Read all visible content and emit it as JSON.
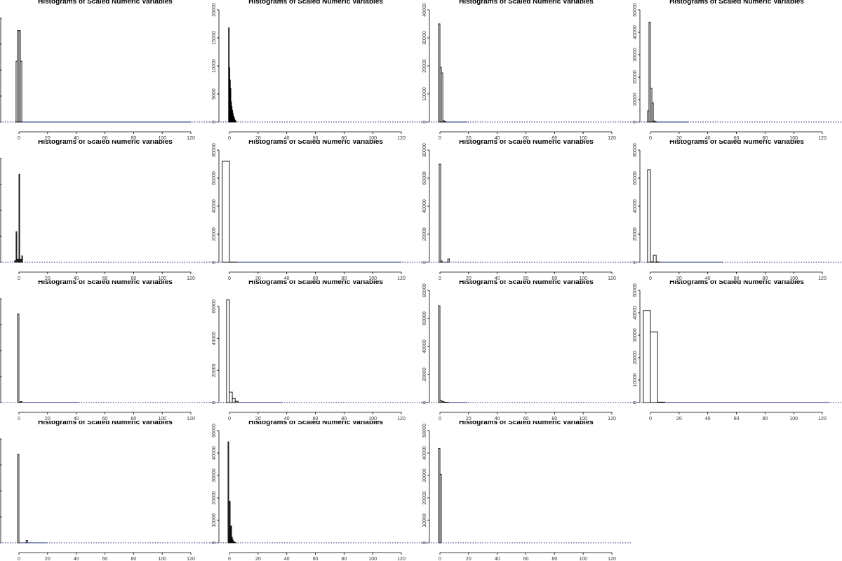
{
  "chart_data": [
    {
      "type": "bar",
      "title": "Histograms of Scaled Numeric Variables",
      "xlim": [
        -5,
        120
      ],
      "ylim": [
        0,
        70000
      ],
      "xticks": [
        "0",
        "20",
        "40",
        "60",
        "80",
        "100",
        "120"
      ],
      "yticks": [],
      "bins": [
        {
          "x0": -2,
          "x1": -1,
          "count": 38000
        },
        {
          "x0": -1,
          "x1": 0,
          "count": 57000
        },
        {
          "x0": 0,
          "x1": 1,
          "count": 57000
        },
        {
          "x0": 1,
          "x1": 2,
          "count": 38000
        }
      ],
      "baseline_end": 120
    },
    {
      "type": "bar",
      "title": "Histograms of Scaled Numeric Variables",
      "xlim": [
        -5,
        120
      ],
      "ylim": [
        0,
        20000
      ],
      "xticks": [
        "0",
        "20",
        "40",
        "60",
        "80",
        "100",
        "120"
      ],
      "yticks": [
        "0",
        "5000",
        "10000",
        "15000",
        "20000"
      ],
      "bins": [
        {
          "x0": -0.6,
          "x1": -0.2,
          "count": 16800
        },
        {
          "x0": -0.2,
          "x1": 0.2,
          "count": 9700
        },
        {
          "x0": 0.2,
          "x1": 0.6,
          "count": 7500
        },
        {
          "x0": 0.6,
          "x1": 1.0,
          "count": 6000
        },
        {
          "x0": 1.0,
          "x1": 1.4,
          "count": 3600
        },
        {
          "x0": 1.4,
          "x1": 1.8,
          "count": 2800
        },
        {
          "x0": 1.8,
          "x1": 2.2,
          "count": 2100
        },
        {
          "x0": 2.2,
          "x1": 2.6,
          "count": 1600
        },
        {
          "x0": 2.6,
          "x1": 3.0,
          "count": 1100
        },
        {
          "x0": 3.0,
          "x1": 3.4,
          "count": 800
        },
        {
          "x0": 3.4,
          "x1": 3.8,
          "count": 500
        },
        {
          "x0": 3.8,
          "x1": 4.2,
          "count": 300
        },
        {
          "x0": 4.2,
          "x1": 4.6,
          "count": 150
        }
      ],
      "baseline_end": 5
    },
    {
      "type": "bar",
      "title": "Histograms of Scaled Numeric Variables",
      "xlim": [
        -5,
        120
      ],
      "ylim": [
        0,
        40000
      ],
      "xticks": [
        "0",
        "20",
        "40",
        "60",
        "80",
        "100",
        "120"
      ],
      "yticks": [
        "0",
        "10000",
        "20000",
        "30000",
        "40000"
      ],
      "bins": [
        {
          "x0": -1,
          "x1": 0,
          "count": 35000
        },
        {
          "x0": 0,
          "x1": 1,
          "count": 19500
        },
        {
          "x0": 1,
          "x1": 2,
          "count": 17500
        },
        {
          "x0": 2,
          "x1": 3,
          "count": 500
        },
        {
          "x0": 3,
          "x1": 4,
          "count": 150
        }
      ],
      "baseline_end": 19
    },
    {
      "type": "bar",
      "title": "Histograms of Scaled Numeric Variables",
      "xlim": [
        -5,
        120
      ],
      "ylim": [
        0,
        50000
      ],
      "xticks": [
        "0",
        "20",
        "40",
        "60",
        "80",
        "100",
        "120"
      ],
      "yticks": [
        "0",
        "10000",
        "20000",
        "30000",
        "40000",
        "50000"
      ],
      "bins": [
        {
          "x0": -2,
          "x1": -1,
          "count": 5000
        },
        {
          "x0": -1,
          "x1": 0,
          "count": 44500
        },
        {
          "x0": 0,
          "x1": 1,
          "count": 15000
        },
        {
          "x0": 1,
          "x1": 2,
          "count": 8500
        },
        {
          "x0": 2,
          "x1": 3,
          "count": 500
        },
        {
          "x0": 3,
          "x1": 4,
          "count": 150
        }
      ],
      "baseline_end": 26
    },
    {
      "type": "bar",
      "title": "Histograms of Scaled Numeric Variables",
      "xlim": [
        -5,
        120
      ],
      "ylim": [
        0,
        70000
      ],
      "xticks": [
        "0",
        "20",
        "40",
        "60",
        "80",
        "100",
        "120"
      ],
      "yticks": [],
      "bins": [
        {
          "x0": -3,
          "x1": -2.5,
          "count": 1000
        },
        {
          "x0": -2,
          "x1": -1.5,
          "count": 19000
        },
        {
          "x0": -1,
          "x1": -0.5,
          "count": 2000
        },
        {
          "x0": 0,
          "x1": 0.5,
          "count": 55000
        },
        {
          "x0": 1,
          "x1": 1.5,
          "count": 2000
        },
        {
          "x0": 2,
          "x1": 2.5,
          "count": 4000
        }
      ],
      "baseline_end": 0
    },
    {
      "type": "bar",
      "title": "Histograms of Scaled Numeric Variables",
      "xlim": [
        -5,
        120
      ],
      "ylim": [
        0,
        80000
      ],
      "xticks": [
        "0",
        "20",
        "40",
        "60",
        "80",
        "100",
        "120"
      ],
      "yticks": [
        "0",
        "20000",
        "40000",
        "60000",
        "80000"
      ],
      "bins": [
        {
          "x0": -5,
          "x1": 0,
          "count": 72000
        },
        {
          "x0": 0,
          "x1": 5,
          "count": 100
        }
      ],
      "baseline_end": 120
    },
    {
      "type": "bar",
      "title": "Histograms of Scaled Numeric Variables",
      "xlim": [
        -5,
        120
      ],
      "ylim": [
        0,
        80000
      ],
      "xticks": [
        "0",
        "20",
        "40",
        "60",
        "80",
        "100",
        "120"
      ],
      "yticks": [
        "0",
        "20000",
        "40000",
        "60000",
        "80000"
      ],
      "bins": [
        {
          "x0": -0.5,
          "x1": 0.5,
          "count": 70000
        },
        {
          "x0": 0.5,
          "x1": 1.5,
          "count": 1000
        },
        {
          "x0": 5.5,
          "x1": 6.5,
          "count": 2500
        }
      ],
      "baseline_end": 6
    },
    {
      "type": "bar",
      "title": "Histograms of Scaled Numeric Variables",
      "xlim": [
        -5,
        120
      ],
      "ylim": [
        0,
        80000
      ],
      "xticks": [
        "0",
        "20",
        "40",
        "60",
        "80",
        "100",
        "120"
      ],
      "yticks": [
        "0",
        "20000",
        "40000",
        "60000",
        "80000"
      ],
      "bins": [
        {
          "x0": -2,
          "x1": 0,
          "count": 66000
        },
        {
          "x0": 0,
          "x1": 2,
          "count": 300
        },
        {
          "x0": 2,
          "x1": 4,
          "count": 5000
        },
        {
          "x0": 4,
          "x1": 6,
          "count": 300
        }
      ],
      "baseline_end": 51
    },
    {
      "type": "bar",
      "title": "Histograms of Scaled Numeric Variables",
      "xlim": [
        -5,
        120
      ],
      "ylim": [
        0,
        90000
      ],
      "xticks": [
        "0",
        "20",
        "40",
        "60",
        "80",
        "100",
        "120"
      ],
      "yticks": [],
      "bins": [
        {
          "x0": -1,
          "x1": 0,
          "count": 71000
        },
        {
          "x0": 0,
          "x1": 1,
          "count": 300
        },
        {
          "x0": 1,
          "x1": 2,
          "count": 800
        }
      ],
      "baseline_end": 42
    },
    {
      "type": "bar",
      "title": "Histograms of Scaled Numeric Variables",
      "xlim": [
        -5,
        120
      ],
      "ylim": [
        0,
        70000
      ],
      "xticks": [
        "0",
        "20",
        "40",
        "60",
        "80",
        "100",
        "120"
      ],
      "yticks": [
        "0",
        "20000",
        "40000",
        "60000"
      ],
      "bins": [
        {
          "x0": -2,
          "x1": 0,
          "count": 64000
        },
        {
          "x0": 0,
          "x1": 2,
          "count": 6500
        },
        {
          "x0": 2,
          "x1": 4,
          "count": 2500
        },
        {
          "x0": 4,
          "x1": 6,
          "count": 800
        }
      ],
      "baseline_end": 37
    },
    {
      "type": "bar",
      "title": "Histograms of Scaled Numeric Variables",
      "xlim": [
        -5,
        120
      ],
      "ylim": [
        0,
        80000
      ],
      "xticks": [
        "0",
        "20",
        "40",
        "60",
        "80",
        "100",
        "120"
      ],
      "yticks": [
        "0",
        "20000",
        "40000",
        "60000",
        "80000"
      ],
      "bins": [
        {
          "x0": -1,
          "x1": 0,
          "count": 69000
        },
        {
          "x0": 0,
          "x1": 1,
          "count": 1500
        },
        {
          "x0": 1,
          "x1": 2,
          "count": 1000
        },
        {
          "x0": 2,
          "x1": 3,
          "count": 600
        },
        {
          "x0": 3,
          "x1": 4,
          "count": 300
        },
        {
          "x0": 4,
          "x1": 5,
          "count": 200
        },
        {
          "x0": 5,
          "x1": 6,
          "count": 200
        }
      ],
      "baseline_end": 19
    },
    {
      "type": "bar",
      "title": "Histograms of Scaled Numeric Variables",
      "xlim": [
        -5,
        120
      ],
      "ylim": [
        0,
        50000
      ],
      "xticks": [
        "0",
        "20",
        "40",
        "60",
        "80",
        "100",
        "120"
      ],
      "yticks": [
        "0",
        "10000",
        "20000",
        "30000",
        "40000",
        "50000"
      ],
      "bins": [
        {
          "x0": -5,
          "x1": 0,
          "count": 41000
        },
        {
          "x0": 0,
          "x1": 5,
          "count": 31500
        },
        {
          "x0": 5,
          "x1": 10,
          "count": 200
        }
      ],
      "baseline_end": 125
    },
    {
      "type": "bar",
      "title": "Histograms of Scaled Numeric Variables",
      "xlim": [
        -5,
        120
      ],
      "ylim": [
        0,
        90000
      ],
      "xticks": [
        "0",
        "20",
        "40",
        "60",
        "80",
        "100",
        "120"
      ],
      "yticks": [],
      "bins": [
        {
          "x0": -1,
          "x1": 0,
          "count": 71000
        },
        {
          "x0": 5,
          "x1": 6,
          "count": 2000
        }
      ],
      "baseline_end": 20
    },
    {
      "type": "bar",
      "title": "Histograms of Scaled Numeric Variables",
      "xlim": [
        -5,
        120
      ],
      "ylim": [
        0,
        50000
      ],
      "xticks": [
        "0",
        "20",
        "40",
        "60",
        "80",
        "100",
        "120"
      ],
      "yticks": [
        "0",
        "10000",
        "20000",
        "30000",
        "40000",
        "50000"
      ],
      "bins": [
        {
          "x0": -1,
          "x1": -0.5,
          "count": 45000
        },
        {
          "x0": -0.5,
          "x1": 0,
          "count": 4000
        },
        {
          "x0": 0,
          "x1": 0.5,
          "count": 18500
        },
        {
          "x0": 0.5,
          "x1": 1,
          "count": 7000
        },
        {
          "x0": 1,
          "x1": 1.5,
          "count": 7500
        },
        {
          "x0": 1.5,
          "x1": 2,
          "count": 2500
        },
        {
          "x0": 2,
          "x1": 2.5,
          "count": 1500
        },
        {
          "x0": 2.5,
          "x1": 3,
          "count": 800
        },
        {
          "x0": 3,
          "x1": 3.5,
          "count": 400
        },
        {
          "x0": 3.5,
          "x1": 4,
          "count": 200
        },
        {
          "x0": 4,
          "x1": 4.5,
          "count": 100
        }
      ],
      "baseline_end": 5
    },
    {
      "type": "bar",
      "title": "Histograms of Scaled Numeric Variables",
      "xlim": [
        -5,
        120
      ],
      "ylim": [
        0,
        50000
      ],
      "xticks": [
        "0",
        "20",
        "40",
        "60",
        "80",
        "100",
        "120"
      ],
      "yticks": [
        "0",
        "10000",
        "20000",
        "30000",
        "40000",
        "50000"
      ],
      "bins": [
        {
          "x0": -1,
          "x1": 0,
          "count": 42000
        },
        {
          "x0": 0,
          "x1": 1,
          "count": 30500
        }
      ],
      "baseline_end": 0
    }
  ]
}
